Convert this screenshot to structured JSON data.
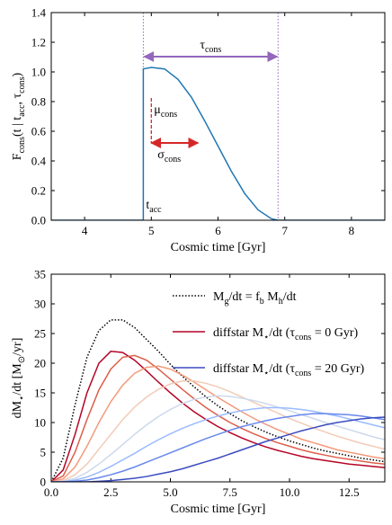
{
  "chart_data": [
    {
      "type": "line",
      "xlabel": "Cosmic time [Gyr]",
      "ylabel": [
        "F",
        "cons",
        "(t | t",
        "acc",
        ", τ",
        "cons",
        ")"
      ],
      "xlim": [
        3.5,
        8.5
      ],
      "xticks": [
        4,
        5,
        6,
        7,
        8
      ],
      "ylim": [
        0,
        1.4
      ],
      "yticks": [
        {
          "value": 0,
          "label": "0.0"
        },
        {
          "value": 0.2,
          "label": "0.2"
        },
        {
          "value": 0.4,
          "label": "0.4"
        },
        {
          "value": 0.6,
          "label": "0.6"
        },
        {
          "value": 0.8,
          "label": "0.8"
        },
        {
          "value": 1.0,
          "label": "1.0"
        },
        {
          "value": 1.2,
          "label": "1.2"
        },
        {
          "value": 1.4,
          "label": "1.4"
        }
      ],
      "x": [
        3.5,
        4.88,
        4.88,
        5.0,
        5.2,
        5.4,
        5.6,
        5.8,
        6.0,
        6.2,
        6.4,
        6.6,
        6.8,
        6.9,
        8.5
      ],
      "series": [
        {
          "color": "#1f77b4",
          "values": [
            0,
            0,
            1.02,
            1.03,
            1.02,
            0.95,
            0.83,
            0.67,
            0.5,
            0.33,
            0.18,
            0.07,
            0.01,
            0,
            0
          ]
        }
      ],
      "t_acc": 4.88,
      "mu_cons": 5.0,
      "sigma_cons": 0.7,
      "tau_cons": 2.02,
      "marker_color": "#9467bd",
      "arrow_color": "#d62728",
      "tau_label": [
        "τ",
        "cons"
      ],
      "mu_label": [
        "μ",
        "cons"
      ],
      "sigma_label": [
        "σ",
        "cons"
      ],
      "t_acc_label": [
        "t",
        "acc"
      ]
    },
    {
      "type": "line",
      "xlabel": "Cosmic time [Gyr]",
      "ylabel": [
        "dM",
        "⋆",
        "/dt [M",
        "⊙",
        "/yr]"
      ],
      "xlim": [
        0,
        14
      ],
      "xticks": [
        {
          "value": 0,
          "label": "0.0"
        },
        {
          "value": 2.5,
          "label": "2.5"
        },
        {
          "value": 5,
          "label": "5.0"
        },
        {
          "value": 7.5,
          "label": "7.5"
        },
        {
          "value": 10,
          "label": "10.0"
        },
        {
          "value": 12.5,
          "label": "12.5"
        }
      ],
      "ylim": [
        0,
        35
      ],
      "yticks": [
        0,
        5,
        10,
        15,
        20,
        25,
        30,
        35
      ],
      "legend": "upper right",
      "x": [
        0,
        0.5,
        1,
        1.5,
        2,
        2.5,
        3,
        3.5,
        4,
        4.5,
        5,
        5.5,
        6,
        6.5,
        7,
        7.5,
        8,
        8.5,
        9,
        9.5,
        10,
        10.5,
        11,
        11.5,
        12,
        12.5,
        13,
        13.5,
        14
      ],
      "series": [
        {
          "name": [
            "M",
            "g",
            "/dt = f",
            "b",
            " M",
            "h",
            "/dt"
          ],
          "color": "#000000",
          "style": "dotted",
          "values": [
            0,
            4,
            13,
            21,
            25.5,
            27.3,
            27.3,
            26,
            24,
            22,
            19.8,
            17.8,
            16,
            14.3,
            12.8,
            11.5,
            10.3,
            9.3,
            8.4,
            7.6,
            6.9,
            6.3,
            5.7,
            5.2,
            4.8,
            4.4,
            4.0,
            3.7,
            3.4
          ]
        },
        {
          "name": [
            "diffstar M",
            "⋆",
            "/dt (τ",
            "cons",
            " = 0 Gyr)"
          ],
          "color": "#b40426",
          "values": [
            0,
            2,
            8,
            15,
            20,
            22,
            21.8,
            20.5,
            18.7,
            16.8,
            15,
            13.3,
            11.8,
            10.5,
            9.3,
            8.3,
            7.4,
            6.6,
            5.9,
            5.3,
            4.8,
            4.3,
            3.9,
            3.6,
            3.3,
            3.0,
            2.8,
            2.6,
            2.4
          ]
        },
        {
          "color": "#dd5f4b",
          "values": [
            0,
            1,
            5,
            10.5,
            15.5,
            19,
            21,
            21.3,
            20.5,
            19,
            17.3,
            15.6,
            14,
            12.5,
            11.2,
            10,
            9,
            8.1,
            7.3,
            6.6,
            6,
            5.4,
            4.9,
            4.5,
            4.1,
            3.8,
            3.5,
            3.2,
            3.0
          ]
        },
        {
          "color": "#f49a7b",
          "values": [
            0,
            0.5,
            2.5,
            6,
            10,
            13.5,
            16.3,
            18.3,
            19.3,
            19.5,
            19,
            18,
            16.8,
            15.5,
            14.2,
            13,
            11.8,
            10.7,
            9.7,
            8.8,
            8,
            7.2,
            6.6,
            6,
            5.4,
            5,
            4.6,
            4.2,
            3.9
          ]
        },
        {
          "color": "#f2cbb7",
          "values": [
            0,
            0.2,
            1.2,
            3,
            5.5,
            8,
            10.5,
            12.6,
            14.3,
            15.6,
            16.5,
            17,
            17,
            16.6,
            16,
            15.2,
            14.3,
            13.4,
            12.5,
            11.6,
            10.7,
            9.9,
            9.1,
            8.4,
            7.7,
            7.1,
            6.5,
            6,
            5.5
          ]
        },
        {
          "color": "#cdd9ec",
          "values": [
            0,
            0.1,
            0.6,
            1.6,
            3,
            4.6,
            6.3,
            8,
            9.6,
            11,
            12.2,
            13.2,
            13.9,
            14.3,
            14.5,
            14.4,
            14.1,
            13.7,
            13.2,
            12.6,
            12,
            11.3,
            10.7,
            10,
            9.4,
            8.8,
            8.2,
            7.6,
            7.1
          ]
        },
        {
          "color": "#9abbff",
          "values": [
            0,
            0,
            0.3,
            0.8,
            1.6,
            2.6,
            3.7,
            4.8,
            6,
            7.1,
            8.1,
            9,
            9.8,
            10.5,
            11.1,
            11.6,
            12,
            12.3,
            12.5,
            12.5,
            12.4,
            12.2,
            11.9,
            11.5,
            11.1,
            10.6,
            10.1,
            9.6,
            9.1
          ]
        },
        {
          "color": "#6788ee",
          "values": [
            0,
            0,
            0.1,
            0.3,
            0.7,
            1.2,
            1.8,
            2.5,
            3.3,
            4.1,
            4.9,
            5.7,
            6.5,
            7.3,
            8,
            8.7,
            9.3,
            9.8,
            10.3,
            10.7,
            11,
            11.3,
            11.5,
            11.5,
            11.4,
            11.3,
            11.1,
            10.8,
            10.5
          ]
        },
        {
          "name": [
            "diffstar M",
            "⋆",
            "/dt (τ",
            "cons",
            " = 20 Gyr)"
          ],
          "color": "#3b4cc0",
          "values": [
            0,
            0,
            0,
            0,
            0.1,
            0.2,
            0.4,
            0.6,
            0.9,
            1.3,
            1.7,
            2.2,
            2.8,
            3.4,
            4,
            4.7,
            5.4,
            6.1,
            6.8,
            7.4,
            8,
            8.6,
            9.1,
            9.6,
            10,
            10.3,
            10.6,
            10.8,
            10.9
          ]
        }
      ]
    }
  ]
}
